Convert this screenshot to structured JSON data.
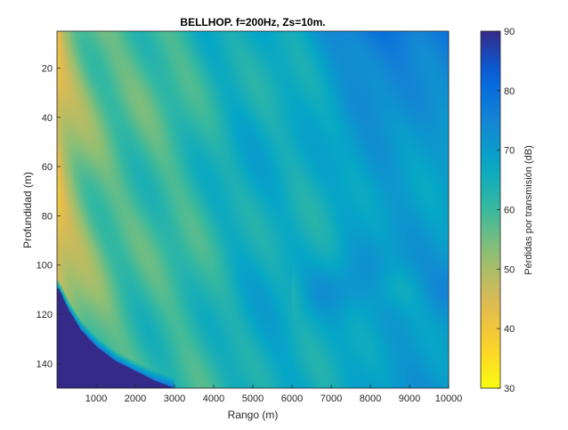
{
  "chart_data": {
    "type": "heatmap",
    "title": "BELLHOP. f=200Hz, Zs=10m.",
    "xlabel": "Rango (m)",
    "ylabel": "Profundidad (m)",
    "colorbar_label": "Pérdidas por transmisión (dB)",
    "xlim": [
      0,
      10000
    ],
    "ylim": [
      5,
      150
    ],
    "y_reversed": true,
    "clim": [
      30,
      90
    ],
    "x_ticks": [
      1000,
      2000,
      3000,
      4000,
      5000,
      6000,
      7000,
      8000,
      9000,
      10000
    ],
    "y_ticks": [
      20,
      40,
      60,
      80,
      100,
      120,
      140
    ],
    "colorbar_ticks": [
      30,
      40,
      50,
      60,
      70,
      80,
      90
    ],
    "colormap": "parula",
    "colormap_stops": [
      "#352a87",
      "#0363e1",
      "#1485d4",
      "#06a7c6",
      "#38b99e",
      "#92bf73",
      "#d9ba56",
      "#fcce2e",
      "#f9fb0e"
    ],
    "shadow_zone": {
      "description": "Deep-blue acoustic shadow region bounded by a curve",
      "boundary_range": [
        0,
        300,
        600,
        1000,
        1500,
        2000,
        2500,
        3000
      ],
      "boundary_depth": [
        108,
        118,
        126,
        133,
        139,
        143,
        147,
        150
      ],
      "value": 90
    },
    "field_summary": {
      "near_source_loss_db": 43,
      "far_range_loss_db": 75,
      "deep_surface_loss_db": 85
    }
  }
}
